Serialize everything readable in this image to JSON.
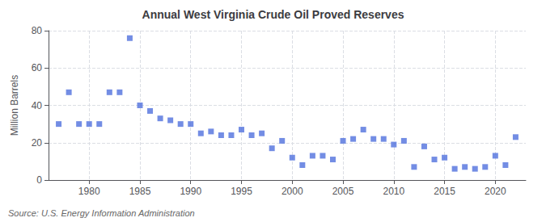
{
  "chart_data": {
    "type": "scatter",
    "title": "Annual West Virginia Crude Oil Proved Reserves",
    "ylabel": "Million Barrels",
    "source": "Source: U.S. Energy Information Administration",
    "marker": "square",
    "x": [
      1977,
      1978,
      1979,
      1980,
      1981,
      1982,
      1983,
      1984,
      1985,
      1986,
      1987,
      1988,
      1989,
      1990,
      1991,
      1992,
      1993,
      1994,
      1995,
      1996,
      1997,
      1998,
      1999,
      2000,
      2001,
      2002,
      2003,
      2004,
      2005,
      2006,
      2007,
      2008,
      2009,
      2010,
      2011,
      2012,
      2013,
      2014,
      2015,
      2016,
      2017,
      2018,
      2019,
      2020,
      2021,
      2022
    ],
    "values": [
      30,
      47,
      30,
      30,
      30,
      47,
      47,
      76,
      40,
      37,
      33,
      32,
      30,
      30,
      25,
      26,
      24,
      24,
      27,
      24,
      25,
      17,
      21,
      12,
      8,
      13,
      13,
      11,
      21,
      22,
      27,
      22,
      22,
      19,
      21,
      7,
      18,
      11,
      12,
      6,
      7,
      6,
      7,
      13,
      8,
      23
    ],
    "xlim": [
      1976,
      2023
    ],
    "xticks": [
      1980,
      1985,
      1990,
      1995,
      2000,
      2005,
      2010,
      2015,
      2020
    ],
    "ylim": [
      0,
      80
    ],
    "yticks": [
      0,
      20,
      40,
      60,
      80
    ],
    "grid": true
  }
}
